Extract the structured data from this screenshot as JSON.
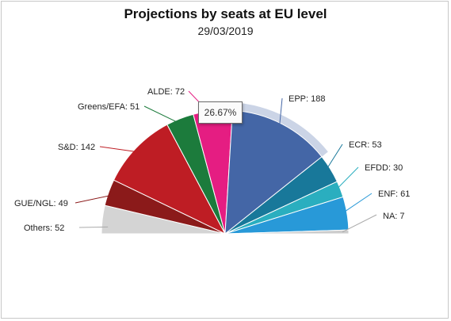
{
  "chart_data": {
    "type": "pie",
    "variant": "semicircle-parliament",
    "title": "Projections by seats at EU level",
    "subtitle": "29/03/2019",
    "series": [
      {
        "name": "Others",
        "label": "Others: 52",
        "value": 52,
        "color": "#d4d4d4"
      },
      {
        "name": "GUE/NGL",
        "label": "GUE/NGL: 49",
        "value": 49,
        "color": "#8b1a1a"
      },
      {
        "name": "S&D",
        "label": "S&D: 142",
        "value": 142,
        "color": "#be1d24"
      },
      {
        "name": "Greens/EFA",
        "label": "Greens/EFA: 51",
        "value": 51,
        "color": "#1c7b3c"
      },
      {
        "name": "ALDE",
        "label": "ALDE: 72",
        "value": 72,
        "color": "#e51d82"
      },
      {
        "name": "EPP",
        "label": "EPP: 188",
        "value": 188,
        "color": "#4466a6"
      },
      {
        "name": "ECR",
        "label": "ECR: 53",
        "value": 53,
        "color": "#18789a"
      },
      {
        "name": "EFDD",
        "label": "EFDD: 30",
        "value": 30,
        "color": "#2aaebf"
      },
      {
        "name": "ENF",
        "label": "ENF: 61",
        "value": 61,
        "color": "#2899d8"
      },
      {
        "name": "NA",
        "label": "NA: 7",
        "value": 7,
        "color": "#cccccc"
      }
    ],
    "hovered": "EPP",
    "tooltip": "26.67%"
  }
}
